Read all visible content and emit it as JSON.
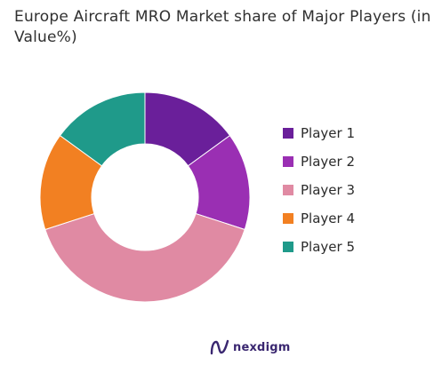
{
  "chart_data": {
    "type": "pie",
    "title": "Europe Aircraft MRO Market share of Major Players (in Value%)",
    "categories": [
      "Player 1",
      "Player 2",
      "Player 3",
      "Player 4",
      "Player 5"
    ],
    "values": [
      15,
      15,
      40,
      15,
      15
    ],
    "colors": [
      "#6a1f9a",
      "#9a2fb3",
      "#e08aa3",
      "#f28022",
      "#1f9a8a"
    ],
    "legend_position": "right",
    "hole": "donut"
  },
  "brand": {
    "name": "nexdigm",
    "icon": "nexdigm-logo-icon"
  }
}
